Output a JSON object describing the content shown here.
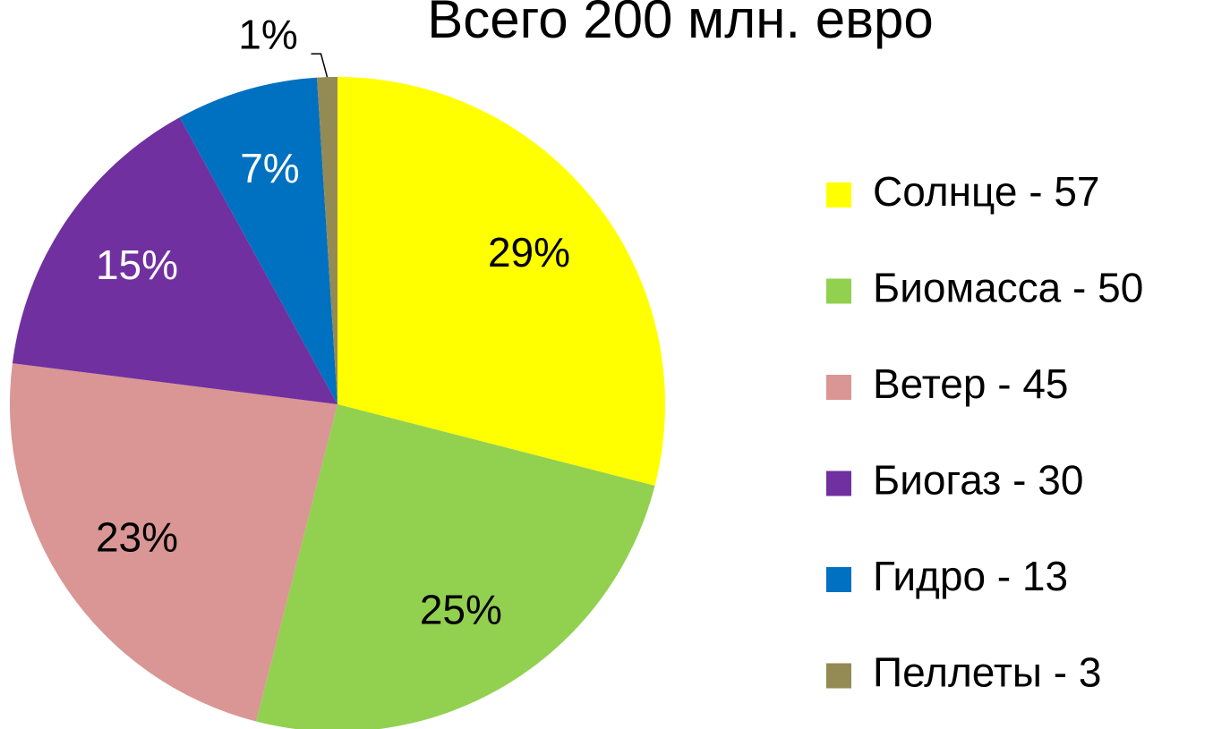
{
  "chart_data": {
    "type": "pie",
    "title": "Всего 200 млн. евро",
    "categories": [
      "Солнце - 57",
      "Биомасса - 50",
      "Ветер - 45",
      "Биогаз - 30",
      "Гидро - 13",
      "Пеллеты - 3"
    ],
    "values": [
      29,
      25,
      23,
      15,
      7,
      1
    ],
    "value_labels": [
      "29%",
      "25%",
      "23%",
      "15%",
      "7%",
      "1%"
    ],
    "colors": [
      "#ffff00",
      "#92d050",
      "#d99694",
      "#7030a0",
      "#0070c0",
      "#948a54"
    ],
    "legend": "right"
  }
}
